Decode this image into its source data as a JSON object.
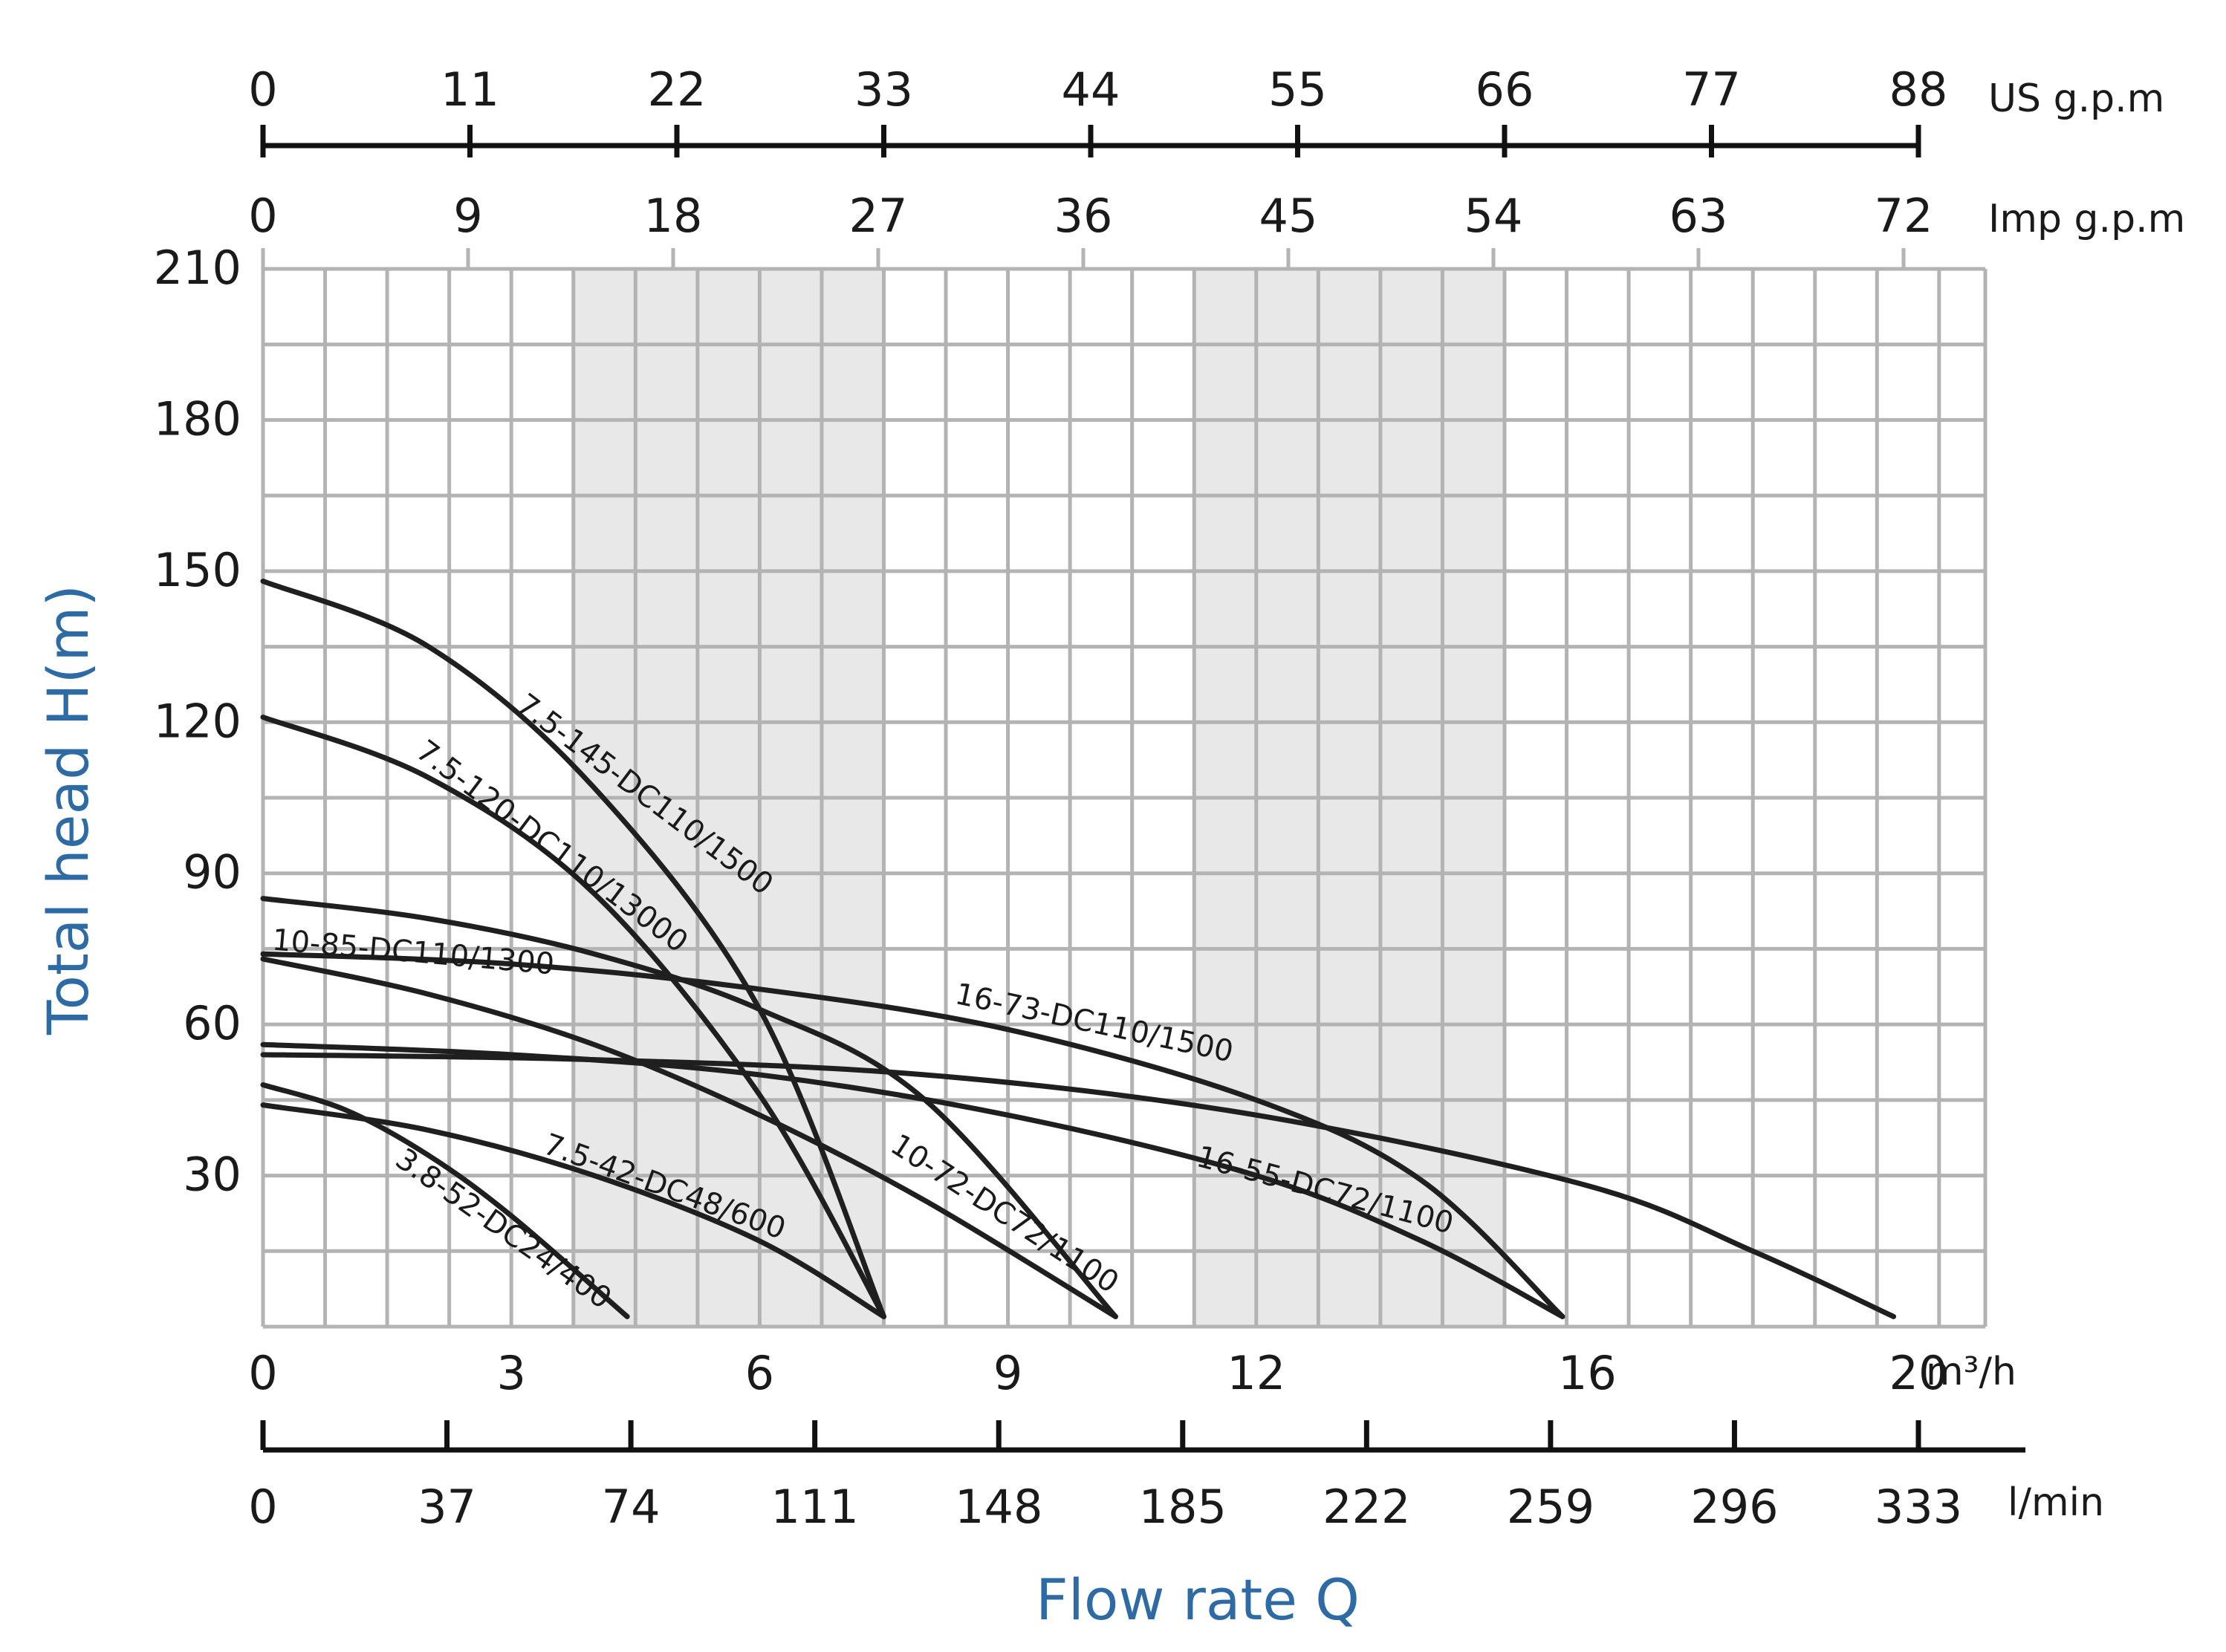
{
  "chart_data": {
    "type": "line",
    "title": "",
    "xlabel": "Flow rate Q",
    "ylabel": "Total head H(m)",
    "xlim": [
      0,
      20
    ],
    "ylim": [
      0,
      210
    ],
    "grid": true,
    "x_ticks": [
      {
        "value": 0,
        "label": "0"
      },
      {
        "value": 3,
        "label": "3"
      },
      {
        "value": 6,
        "label": "6"
      },
      {
        "value": 9,
        "label": "9"
      },
      {
        "value": 12,
        "label": "12"
      },
      {
        "value": 16,
        "label": "16"
      },
      {
        "value": 20,
        "label": "20"
      }
    ],
    "x_unit": "m³/h",
    "y_ticks": [
      "30",
      "60",
      "90",
      "120",
      "150",
      "180",
      "210"
    ],
    "secondary_axes": [
      {
        "name": "us",
        "unit": "US g.p.m",
        "ticks": [
          "0",
          "11",
          "22",
          "33",
          "44",
          "55",
          "66",
          "77",
          "88"
        ]
      },
      {
        "name": "imp",
        "unit": "Imp g.p.m",
        "ticks": [
          "0",
          "9",
          "18",
          "27",
          "36",
          "45",
          "54",
          "63",
          "72"
        ]
      },
      {
        "name": "lmin",
        "unit": "l/min",
        "ticks": [
          "0",
          "37",
          "74",
          "111",
          "148",
          "185",
          "222",
          "259",
          "296",
          "333"
        ]
      }
    ],
    "series": [
      {
        "name": "7.5-145-DC110/1500",
        "x": [
          0,
          2,
          4,
          6,
          7.5
        ],
        "y": [
          148,
          135,
          107,
          63,
          2
        ]
      },
      {
        "name": "7.5-120-DC110/13000",
        "x": [
          0,
          2,
          4,
          6,
          7.5
        ],
        "y": [
          121,
          109,
          86,
          46,
          2
        ]
      },
      {
        "name": "10-85-DC110/1300",
        "x": [
          0,
          2,
          4,
          6,
          8,
          10.3
        ],
        "y": [
          85,
          81,
          74,
          63,
          45,
          2
        ]
      },
      {
        "name": "16-73-DC110/1500",
        "x": [
          0,
          3,
          6,
          9,
          12,
          14,
          15.7
        ],
        "y": [
          74,
          72,
          67,
          59,
          45,
          29,
          2
        ]
      },
      {
        "name": "10-72-DC72/1100",
        "x": [
          0,
          2,
          4,
          6,
          8,
          10.3
        ],
        "y": [
          73,
          66,
          56,
          42,
          25,
          2
        ]
      },
      {
        "name": "16-55-DC72/1100",
        "x": [
          0,
          3,
          6,
          9,
          12,
          14,
          15.7
        ],
        "y": [
          56,
          54,
          50,
          42,
          30,
          17,
          2
        ]
      },
      {
        "name": "16-55-DC72/1100",
        "x": [
          0,
          4,
          8,
          12,
          16,
          18,
          19.7
        ],
        "y": [
          54,
          53,
          50,
          42,
          28,
          15,
          2
        ]
      },
      {
        "name": "7.5-42-DC48/600",
        "x": [
          0,
          2,
          4,
          6,
          7.5
        ],
        "y": [
          44,
          39,
          30,
          17,
          2
        ]
      },
      {
        "name": "3.8-52-DC24/400",
        "x": [
          0,
          1,
          2,
          3,
          4.4
        ],
        "y": [
          48,
          43,
          34,
          22,
          2
        ]
      }
    ],
    "annotations": [
      {
        "text": "7.5-145-DC110/1500"
      },
      {
        "text": "7.5-120-DC110/13000"
      },
      {
        "text": "10-85-DC110/1300"
      },
      {
        "text": "16-73-DC110/1500"
      },
      {
        "text": "10-72-DC72/1100"
      },
      {
        "text": "16-55-DC72/1100"
      },
      {
        "text": "7.5-42-DC48/600"
      },
      {
        "text": "3.8-52-DC24/400"
      }
    ],
    "shaded_bands_x": [
      [
        3.75,
        7.5
      ],
      [
        11.25,
        15
      ]
    ],
    "colors": {
      "curve": "#1f1f1f",
      "grid": "#b3b3b3",
      "band": "#e8e8e8",
      "title": "#2e6aa3"
    }
  }
}
